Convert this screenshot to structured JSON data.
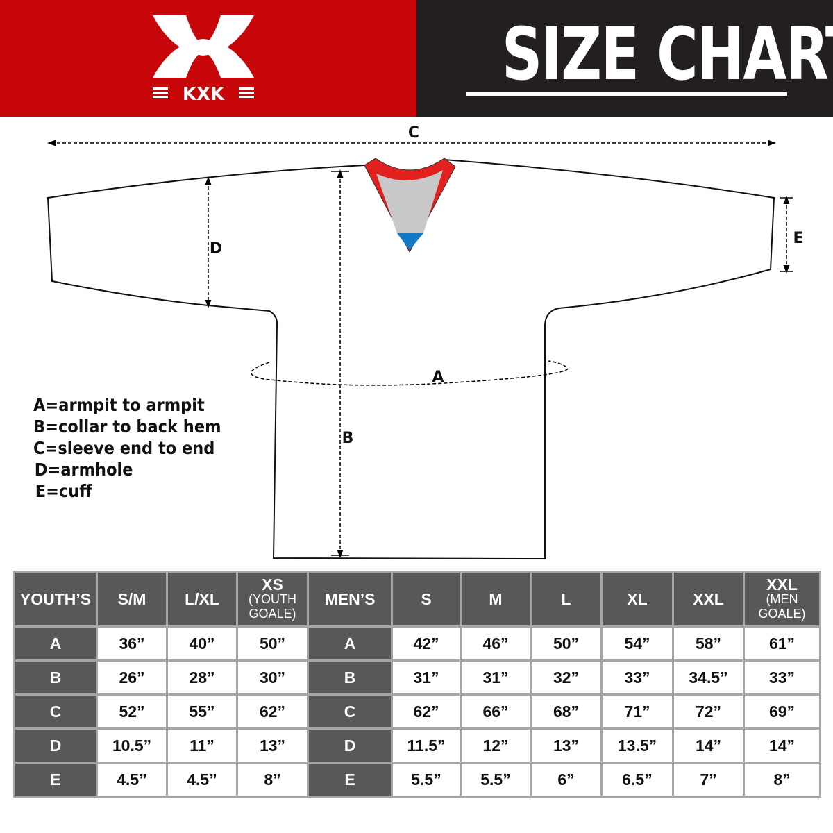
{
  "brand": {
    "logo_text": "KXK",
    "colors": {
      "header_red": "#c8070b",
      "header_dark": "#231f20",
      "table_header": "#58585a",
      "collar_red": "#e0211d",
      "collar_gray": "#c8c8c8",
      "collar_blue": "#1479c4"
    }
  },
  "title": "SIZE CHART",
  "diagram": {
    "labels": {
      "a": "A",
      "b": "B",
      "c": "C",
      "d": "D",
      "e": "E"
    }
  },
  "legend": [
    "A=armpit to armpit",
    "B=collar to back hem",
    "C=sleeve end to end",
    "D=armhole",
    "E=cuff"
  ],
  "table": {
    "youth": {
      "header": "YOUTH’S",
      "columns": [
        {
          "label": "S/M",
          "sub": ""
        },
        {
          "label": "L/XL",
          "sub": ""
        },
        {
          "label": "XS",
          "sub": "(YOUTH GOALE)"
        }
      ],
      "rows": [
        {
          "label": "A",
          "values": [
            "36”",
            "40”",
            "50”"
          ]
        },
        {
          "label": "B",
          "values": [
            "26”",
            "28”",
            "30”"
          ]
        },
        {
          "label": "C",
          "values": [
            "52”",
            "55”",
            "62”"
          ]
        },
        {
          "label": "D",
          "values": [
            "10.5”",
            "11”",
            "13”"
          ]
        },
        {
          "label": "E",
          "values": [
            "4.5”",
            "4.5”",
            "8”"
          ]
        }
      ]
    },
    "men": {
      "header": "MEN’S",
      "columns": [
        {
          "label": "S",
          "sub": ""
        },
        {
          "label": "M",
          "sub": ""
        },
        {
          "label": "L",
          "sub": ""
        },
        {
          "label": "XL",
          "sub": ""
        },
        {
          "label": "XXL",
          "sub": ""
        },
        {
          "label": "XXL",
          "sub": "(MEN GOALE)"
        }
      ],
      "rows": [
        {
          "label": "A",
          "values": [
            "42”",
            "46”",
            "50”",
            "54”",
            "58”",
            "61”"
          ]
        },
        {
          "label": "B",
          "values": [
            "31”",
            "31”",
            "32”",
            "33”",
            "34.5”",
            "33”"
          ]
        },
        {
          "label": "C",
          "values": [
            "62”",
            "66”",
            "68”",
            "71”",
            "72”",
            "69”"
          ]
        },
        {
          "label": "D",
          "values": [
            "11.5”",
            "12”",
            "13”",
            "13.5”",
            "14”",
            "14”"
          ]
        },
        {
          "label": "E",
          "values": [
            "5.5”",
            "5.5”",
            "6”",
            "6.5”",
            "7”",
            "8”"
          ]
        }
      ]
    }
  }
}
